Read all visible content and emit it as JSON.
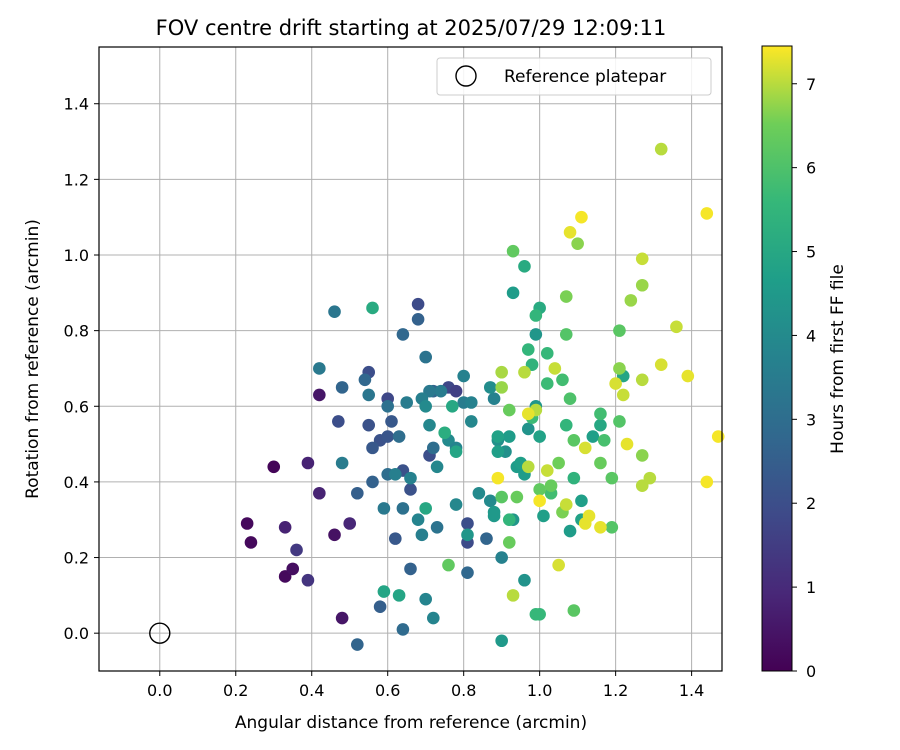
{
  "chart_data": {
    "type": "scatter",
    "title": "FOV centre drift starting at 2025/07/29 12:09:11",
    "xlabel": "Angular distance from reference (arcmin)",
    "ylabel": "Rotation from reference (arcmin)",
    "xlim": [
      -0.16,
      1.48
    ],
    "ylim": [
      -0.1,
      1.55
    ],
    "x_ticks": [
      0.0,
      0.2,
      0.4,
      0.6,
      0.8,
      1.0,
      1.2,
      1.4
    ],
    "y_ticks": [
      0.0,
      0.2,
      0.4,
      0.6,
      0.8,
      1.0,
      1.2,
      1.4
    ],
    "grid": true,
    "legend": {
      "placement": "top-right",
      "entries": [
        "Reference platepar"
      ]
    },
    "reference_point": {
      "x": 0.0,
      "y": 0.0,
      "label": "Reference platepar",
      "marker": "hollow-circle"
    },
    "colorbar": {
      "label": "Hours from first FF file",
      "colormap": "viridis",
      "range": [
        0,
        7.45
      ],
      "ticks": [
        0,
        1,
        2,
        3,
        4,
        5,
        6,
        7
      ]
    },
    "points": [
      {
        "x": 0.3,
        "y": 0.44,
        "c": 0.1
      },
      {
        "x": 0.23,
        "y": 0.29,
        "c": 0.2
      },
      {
        "x": 0.24,
        "y": 0.24,
        "c": 0.2
      },
      {
        "x": 0.33,
        "y": 0.15,
        "c": 0.2
      },
      {
        "x": 0.35,
        "y": 0.17,
        "c": 0.3
      },
      {
        "x": 0.46,
        "y": 0.26,
        "c": 0.4
      },
      {
        "x": 0.48,
        "y": 0.04,
        "c": 0.5
      },
      {
        "x": 0.42,
        "y": 0.63,
        "c": 0.5
      },
      {
        "x": 0.33,
        "y": 0.28,
        "c": 0.8
      },
      {
        "x": 0.39,
        "y": 0.45,
        "c": 0.8
      },
      {
        "x": 0.42,
        "y": 0.37,
        "c": 0.8
      },
      {
        "x": 0.5,
        "y": 0.29,
        "c": 0.9
      },
      {
        "x": 0.39,
        "y": 0.14,
        "c": 1.3
      },
      {
        "x": 0.36,
        "y": 0.22,
        "c": 1.4
      },
      {
        "x": 0.47,
        "y": 0.56,
        "c": 2.0
      },
      {
        "x": 0.55,
        "y": 0.69,
        "c": 2.0
      },
      {
        "x": 0.6,
        "y": 0.62,
        "c": 1.8
      },
      {
        "x": 0.68,
        "y": 0.87,
        "c": 1.9
      },
      {
        "x": 0.55,
        "y": 0.55,
        "c": 2.1
      },
      {
        "x": 0.58,
        "y": 0.51,
        "c": 2.1
      },
      {
        "x": 0.6,
        "y": 0.52,
        "c": 2.2
      },
      {
        "x": 0.64,
        "y": 0.43,
        "c": 2.1
      },
      {
        "x": 0.66,
        "y": 0.38,
        "c": 2.1
      },
      {
        "x": 0.71,
        "y": 0.47,
        "c": 2.0
      },
      {
        "x": 0.76,
        "y": 0.65,
        "c": 1.8
      },
      {
        "x": 0.78,
        "y": 0.64,
        "c": 1.6
      },
      {
        "x": 0.81,
        "y": 0.24,
        "c": 1.9
      },
      {
        "x": 0.81,
        "y": 0.29,
        "c": 2.0
      },
      {
        "x": 0.61,
        "y": 0.56,
        "c": 2.3
      },
      {
        "x": 0.56,
        "y": 0.49,
        "c": 2.3
      },
      {
        "x": 0.62,
        "y": 0.25,
        "c": 2.3
      },
      {
        "x": 0.58,
        "y": 0.07,
        "c": 2.5
      },
      {
        "x": 0.52,
        "y": 0.37,
        "c": 2.5
      },
      {
        "x": 0.66,
        "y": 0.17,
        "c": 2.6
      },
      {
        "x": 0.68,
        "y": 0.83,
        "c": 2.6
      },
      {
        "x": 0.56,
        "y": 0.4,
        "c": 2.6
      },
      {
        "x": 0.6,
        "y": 0.42,
        "c": 3.0
      },
      {
        "x": 0.72,
        "y": 0.64,
        "c": 2.7
      },
      {
        "x": 0.64,
        "y": 0.79,
        "c": 2.8
      },
      {
        "x": 0.52,
        "y": -0.03,
        "c": 2.7
      },
      {
        "x": 0.64,
        "y": 0.01,
        "c": 2.9
      },
      {
        "x": 0.86,
        "y": 0.25,
        "c": 2.7
      },
      {
        "x": 0.48,
        "y": 0.65,
        "c": 2.7
      },
      {
        "x": 0.54,
        "y": 0.67,
        "c": 2.8
      },
      {
        "x": 0.63,
        "y": 0.52,
        "c": 3.0
      },
      {
        "x": 0.72,
        "y": 0.49,
        "c": 3.0
      },
      {
        "x": 0.64,
        "y": 0.33,
        "c": 3.1
      },
      {
        "x": 0.81,
        "y": 0.16,
        "c": 2.8
      },
      {
        "x": 0.6,
        "y": 0.6,
        "c": 3.1
      },
      {
        "x": 0.7,
        "y": 0.73,
        "c": 3.2
      },
      {
        "x": 0.73,
        "y": 0.28,
        "c": 3.2
      },
      {
        "x": 0.46,
        "y": 0.85,
        "c": 3.3
      },
      {
        "x": 0.42,
        "y": 0.7,
        "c": 3.4
      },
      {
        "x": 0.55,
        "y": 0.63,
        "c": 3.3
      },
      {
        "x": 0.59,
        "y": 0.33,
        "c": 3.4
      },
      {
        "x": 0.48,
        "y": 0.45,
        "c": 3.5
      },
      {
        "x": 0.65,
        "y": 0.61,
        "c": 3.5
      },
      {
        "x": 0.74,
        "y": 0.64,
        "c": 3.5
      },
      {
        "x": 0.8,
        "y": 0.61,
        "c": 3.5
      },
      {
        "x": 0.82,
        "y": 0.61,
        "c": 3.7
      },
      {
        "x": 0.8,
        "y": 0.68,
        "c": 3.7
      },
      {
        "x": 0.88,
        "y": 0.62,
        "c": 3.7
      },
      {
        "x": 0.71,
        "y": 0.64,
        "c": 3.4
      },
      {
        "x": 0.69,
        "y": 0.62,
        "c": 3.6
      },
      {
        "x": 0.69,
        "y": 0.26,
        "c": 3.6
      },
      {
        "x": 0.7,
        "y": 0.09,
        "c": 3.8
      },
      {
        "x": 0.72,
        "y": 0.04,
        "c": 3.8
      },
      {
        "x": 0.62,
        "y": 0.42,
        "c": 3.6
      },
      {
        "x": 0.66,
        "y": 0.41,
        "c": 3.7
      },
      {
        "x": 0.68,
        "y": 0.3,
        "c": 3.8
      },
      {
        "x": 0.73,
        "y": 0.44,
        "c": 3.9
      },
      {
        "x": 0.76,
        "y": 0.51,
        "c": 4.0
      },
      {
        "x": 0.78,
        "y": 0.49,
        "c": 3.8
      },
      {
        "x": 0.78,
        "y": 0.34,
        "c": 3.9
      },
      {
        "x": 0.71,
        "y": 0.55,
        "c": 3.9
      },
      {
        "x": 0.7,
        "y": 0.6,
        "c": 4.0
      },
      {
        "x": 0.82,
        "y": 0.56,
        "c": 3.9
      },
      {
        "x": 0.84,
        "y": 0.37,
        "c": 4.0
      },
      {
        "x": 0.87,
        "y": 0.35,
        "c": 4.0
      },
      {
        "x": 0.87,
        "y": 0.65,
        "c": 4.1
      },
      {
        "x": 0.89,
        "y": 0.51,
        "c": 4.2
      },
      {
        "x": 0.91,
        "y": 0.48,
        "c": 4.2
      },
      {
        "x": 0.9,
        "y": 0.2,
        "c": 3.7
      },
      {
        "x": 0.9,
        "y": -0.02,
        "c": 4.5
      },
      {
        "x": 0.97,
        "y": 0.54,
        "c": 4.3
      },
      {
        "x": 0.96,
        "y": 0.14,
        "c": 4.3
      },
      {
        "x": 0.99,
        "y": 0.79,
        "c": 4.4
      },
      {
        "x": 0.99,
        "y": 0.6,
        "c": 4.4
      },
      {
        "x": 0.81,
        "y": 0.26,
        "c": 4.4
      },
      {
        "x": 0.88,
        "y": 0.31,
        "c": 4.5
      },
      {
        "x": 0.88,
        "y": 0.32,
        "c": 4.5
      },
      {
        "x": 0.93,
        "y": 0.3,
        "c": 4.4
      },
      {
        "x": 0.93,
        "y": 0.9,
        "c": 4.6
      },
      {
        "x": 0.94,
        "y": 0.44,
        "c": 4.6
      },
      {
        "x": 0.96,
        "y": 0.42,
        "c": 4.6
      },
      {
        "x": 0.95,
        "y": 0.45,
        "c": 4.7
      },
      {
        "x": 0.92,
        "y": 0.52,
        "c": 4.6
      },
      {
        "x": 0.89,
        "y": 0.48,
        "c": 4.7
      },
      {
        "x": 0.89,
        "y": 0.52,
        "c": 4.8
      },
      {
        "x": 1.01,
        "y": 0.31,
        "c": 4.7
      },
      {
        "x": 1.0,
        "y": 0.52,
        "c": 4.8
      },
      {
        "x": 1.08,
        "y": 0.27,
        "c": 4.6
      },
      {
        "x": 1.14,
        "y": 0.52,
        "c": 4.7
      },
      {
        "x": 1.11,
        "y": 0.35,
        "c": 4.7
      },
      {
        "x": 1.11,
        "y": 0.3,
        "c": 4.8
      },
      {
        "x": 1.16,
        "y": 0.55,
        "c": 5.0
      },
      {
        "x": 1.22,
        "y": 0.68,
        "c": 4.9
      },
      {
        "x": 0.59,
        "y": 0.11,
        "c": 4.9
      },
      {
        "x": 0.63,
        "y": 0.1,
        "c": 4.9
      },
      {
        "x": 0.78,
        "y": 0.48,
        "c": 4.9
      },
      {
        "x": 0.75,
        "y": 0.53,
        "c": 5.2
      },
      {
        "x": 0.96,
        "y": 0.97,
        "c": 5.1
      },
      {
        "x": 1.0,
        "y": 0.86,
        "c": 5.1
      },
      {
        "x": 0.56,
        "y": 0.86,
        "c": 5.1
      },
      {
        "x": 0.77,
        "y": 0.6,
        "c": 5.0
      },
      {
        "x": 0.7,
        "y": 0.33,
        "c": 5.0
      },
      {
        "x": 0.99,
        "y": 0.84,
        "c": 5.5
      },
      {
        "x": 0.98,
        "y": 0.71,
        "c": 5.4
      },
      {
        "x": 0.97,
        "y": 0.75,
        "c": 5.5
      },
      {
        "x": 0.92,
        "y": 0.3,
        "c": 5.5
      },
      {
        "x": 0.99,
        "y": 0.05,
        "c": 5.6
      },
      {
        "x": 1.0,
        "y": 0.05,
        "c": 5.6
      },
      {
        "x": 0.98,
        "y": 0.57,
        "c": 5.7
      },
      {
        "x": 1.07,
        "y": 0.55,
        "c": 5.5
      },
      {
        "x": 1.09,
        "y": 0.41,
        "c": 5.4
      },
      {
        "x": 1.02,
        "y": 0.74,
        "c": 5.6
      },
      {
        "x": 1.02,
        "y": 0.66,
        "c": 5.7
      },
      {
        "x": 1.06,
        "y": 0.67,
        "c": 5.8
      },
      {
        "x": 1.03,
        "y": 0.37,
        "c": 5.8
      },
      {
        "x": 1.08,
        "y": 0.62,
        "c": 6.0
      },
      {
        "x": 1.16,
        "y": 0.58,
        "c": 5.8
      },
      {
        "x": 1.17,
        "y": 0.51,
        "c": 5.9
      },
      {
        "x": 1.19,
        "y": 0.28,
        "c": 6.1
      },
      {
        "x": 1.19,
        "y": 0.41,
        "c": 6.2
      },
      {
        "x": 1.09,
        "y": 0.06,
        "c": 6.2
      },
      {
        "x": 1.0,
        "y": 0.38,
        "c": 6.3
      },
      {
        "x": 1.07,
        "y": 0.79,
        "c": 6.1
      },
      {
        "x": 1.09,
        "y": 0.51,
        "c": 6.2
      },
      {
        "x": 1.16,
        "y": 0.45,
        "c": 6.4
      },
      {
        "x": 1.21,
        "y": 0.8,
        "c": 6.2
      },
      {
        "x": 1.21,
        "y": 0.56,
        "c": 6.1
      },
      {
        "x": 0.93,
        "y": 1.01,
        "c": 6.3
      },
      {
        "x": 0.92,
        "y": 0.24,
        "c": 6.4
      },
      {
        "x": 0.92,
        "y": 0.59,
        "c": 6.4
      },
      {
        "x": 0.94,
        "y": 0.36,
        "c": 6.4
      },
      {
        "x": 0.9,
        "y": 0.36,
        "c": 6.2
      },
      {
        "x": 0.76,
        "y": 0.18,
        "c": 6.3
      },
      {
        "x": 1.03,
        "y": 0.39,
        "c": 6.4
      },
      {
        "x": 1.05,
        "y": 0.45,
        "c": 6.5
      },
      {
        "x": 1.06,
        "y": 0.32,
        "c": 6.6
      },
      {
        "x": 1.07,
        "y": 0.89,
        "c": 6.6
      },
      {
        "x": 1.1,
        "y": 1.03,
        "c": 6.7
      },
      {
        "x": 1.21,
        "y": 0.7,
        "c": 6.7
      },
      {
        "x": 1.24,
        "y": 0.88,
        "c": 6.8
      },
      {
        "x": 1.27,
        "y": 0.47,
        "c": 6.7
      },
      {
        "x": 1.27,
        "y": 0.92,
        "c": 6.8
      },
      {
        "x": 1.32,
        "y": 1.28,
        "c": 7.0
      },
      {
        "x": 1.22,
        "y": 0.63,
        "c": 7.1
      },
      {
        "x": 0.9,
        "y": 0.69,
        "c": 6.9
      },
      {
        "x": 0.9,
        "y": 0.65,
        "c": 6.8
      },
      {
        "x": 0.93,
        "y": 0.1,
        "c": 7.0
      },
      {
        "x": 0.96,
        "y": 0.69,
        "c": 7.0
      },
      {
        "x": 0.97,
        "y": 0.44,
        "c": 7.0
      },
      {
        "x": 0.99,
        "y": 0.59,
        "c": 7.0
      },
      {
        "x": 1.02,
        "y": 0.43,
        "c": 7.1
      },
      {
        "x": 1.04,
        "y": 0.7,
        "c": 7.1
      },
      {
        "x": 1.05,
        "y": 0.18,
        "c": 7.2
      },
      {
        "x": 1.07,
        "y": 0.34,
        "c": 7.1
      },
      {
        "x": 1.08,
        "y": 1.06,
        "c": 7.3
      },
      {
        "x": 1.11,
        "y": 1.1,
        "c": 7.4
      },
      {
        "x": 1.12,
        "y": 0.49,
        "c": 7.2
      },
      {
        "x": 1.12,
        "y": 0.29,
        "c": 7.3
      },
      {
        "x": 1.13,
        "y": 0.31,
        "c": 7.3
      },
      {
        "x": 1.16,
        "y": 0.28,
        "c": 7.3
      },
      {
        "x": 1.2,
        "y": 0.66,
        "c": 7.2
      },
      {
        "x": 1.23,
        "y": 0.5,
        "c": 7.3
      },
      {
        "x": 1.27,
        "y": 0.39,
        "c": 7.0
      },
      {
        "x": 1.27,
        "y": 0.67,
        "c": 7.0
      },
      {
        "x": 1.27,
        "y": 0.99,
        "c": 7.1
      },
      {
        "x": 1.29,
        "y": 0.41,
        "c": 7.0
      },
      {
        "x": 1.32,
        "y": 0.71,
        "c": 7.2
      },
      {
        "x": 1.36,
        "y": 0.81,
        "c": 7.1
      },
      {
        "x": 1.39,
        "y": 0.68,
        "c": 7.3
      },
      {
        "x": 1.44,
        "y": 1.11,
        "c": 7.4
      },
      {
        "x": 1.44,
        "y": 0.4,
        "c": 7.4
      },
      {
        "x": 1.47,
        "y": 0.52,
        "c": 7.4
      },
      {
        "x": 1.0,
        "y": 0.35,
        "c": 7.4
      },
      {
        "x": 0.89,
        "y": 0.41,
        "c": 7.4
      },
      {
        "x": 0.97,
        "y": 0.58,
        "c": 7.3
      }
    ]
  }
}
